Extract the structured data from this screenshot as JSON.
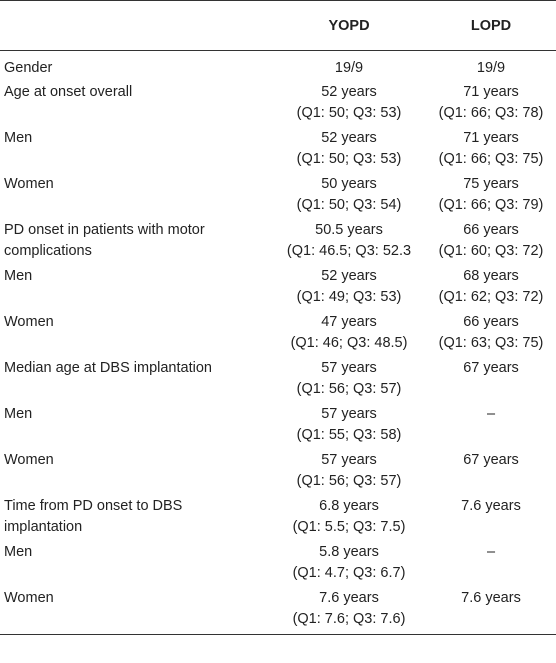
{
  "headers": [
    "",
    "YOPD",
    "LOPD"
  ],
  "rows": [
    {
      "label": [
        "Gender"
      ],
      "yopd": [
        "19/9"
      ],
      "lopd": [
        "19/9"
      ]
    },
    {
      "label": [
        "Age at onset overall"
      ],
      "yopd": [
        "52 years",
        "(Q1: 50; Q3: 53)"
      ],
      "lopd": [
        "71 years",
        "(Q1: 66; Q3: 78)"
      ]
    },
    {
      "label": [
        "Men"
      ],
      "yopd": [
        "52 years",
        "(Q1: 50; Q3: 53)"
      ],
      "lopd": [
        "71 years",
        "(Q1: 66; Q3: 75)"
      ]
    },
    {
      "label": [
        "Women"
      ],
      "yopd": [
        "50 years",
        "(Q1: 50; Q3: 54)"
      ],
      "lopd": [
        "75 years",
        "(Q1: 66; Q3: 79)"
      ]
    },
    {
      "label": [
        "PD onset in patients with motor",
        "complications"
      ],
      "yopd": [
        "50.5 years",
        "(Q1: 46.5; Q3: 52.3"
      ],
      "lopd": [
        "66 years",
        "(Q1: 60; Q3: 72)"
      ]
    },
    {
      "label": [
        "Men"
      ],
      "yopd": [
        "52 years",
        "(Q1: 49; Q3: 53)"
      ],
      "lopd": [
        "68 years",
        "(Q1: 62; Q3: 72)"
      ]
    },
    {
      "label": [
        "Women"
      ],
      "yopd": [
        "47 years",
        "(Q1: 46; Q3: 48.5)"
      ],
      "lopd": [
        "66 years",
        "(Q1: 63; Q3: 75)"
      ]
    },
    {
      "label": [
        "Median age at DBS implantation"
      ],
      "yopd": [
        "57 years",
        "(Q1: 56; Q3: 57)"
      ],
      "lopd": [
        "67 years"
      ]
    },
    {
      "label": [
        "Men"
      ],
      "yopd": [
        "57 years",
        "(Q1: 55; Q3: 58)"
      ],
      "lopd": [
        "–"
      ]
    },
    {
      "label": [
        "Women"
      ],
      "yopd": [
        "57 years",
        "(Q1: 56; Q3: 57)"
      ],
      "lopd": [
        "67 years"
      ]
    },
    {
      "label": [
        "Time from PD onset to DBS",
        "implantation"
      ],
      "yopd": [
        "6.8 years",
        "(Q1: 5.5; Q3: 7.5)"
      ],
      "lopd": [
        "7.6 years"
      ]
    },
    {
      "label": [
        "Men"
      ],
      "yopd": [
        "5.8 years",
        "(Q1: 4.7; Q3: 6.7)"
      ],
      "lopd": [
        "–"
      ]
    },
    {
      "label": [
        "Women"
      ],
      "yopd": [
        "7.6 years",
        "(Q1: 7.6; Q3: 7.6)"
      ],
      "lopd": [
        "7.6 years"
      ]
    }
  ]
}
